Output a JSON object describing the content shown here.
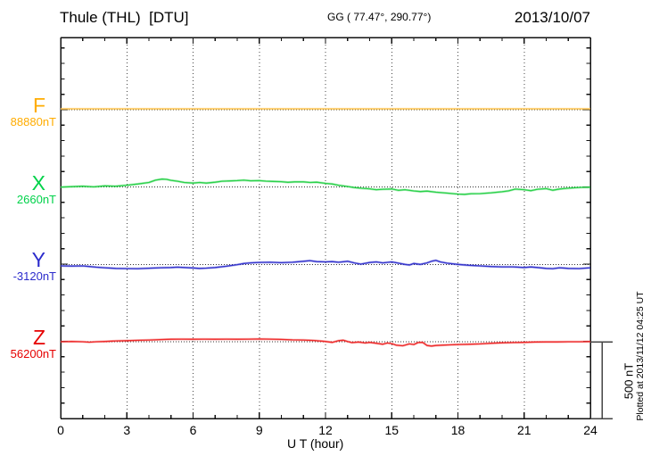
{
  "header": {
    "title": "Thule (THL)  [DTU]",
    "coordinates": "GG ( 77.47°, 290.77°)",
    "date": "2013/10/07"
  },
  "chart_data": {
    "type": "line",
    "title": "Thule (THL)  [DTU]",
    "xlabel": "U T (hour)",
    "x_range": [
      0,
      24
    ],
    "x_ticks": [
      "0",
      "3",
      "6",
      "9",
      "12",
      "15",
      "18",
      "21",
      "24"
    ],
    "grid_hours": [
      3,
      6,
      9,
      12,
      15,
      18,
      21
    ],
    "minor_tick_every_hours": 1,
    "y_tick_step_nT": 100,
    "scale_bar_label": "500 nT",
    "scale_bar_nT": 500,
    "plotted_at": "Plotted at 2013/11/12 04:25 UT",
    "grid": true,
    "legend_position": "left-margin",
    "series": [
      {
        "name": "F",
        "baseline_label": "88880nT",
        "baseline_nT": 88880,
        "label_color": "#FFAC00",
        "line_color": "#FFC34D",
        "points": [
          [
            0,
            6
          ],
          [
            24,
            6
          ]
        ]
      },
      {
        "name": "X",
        "baseline_label": "2660nT",
        "baseline_nT": 2660,
        "label_color": "#00D24A",
        "line_color": "#2BD14B",
        "points": [
          [
            0,
            0
          ],
          [
            0.5,
            3
          ],
          [
            1,
            6
          ],
          [
            1.5,
            2
          ],
          [
            2,
            8
          ],
          [
            2.5,
            6
          ],
          [
            3,
            12
          ],
          [
            3.5,
            20
          ],
          [
            4,
            30
          ],
          [
            4.3,
            45
          ],
          [
            4.6,
            52
          ],
          [
            4.8,
            50
          ],
          [
            5,
            44
          ],
          [
            5.3,
            38
          ],
          [
            5.6,
            30
          ],
          [
            6,
            26
          ],
          [
            6.3,
            30
          ],
          [
            6.6,
            26
          ],
          [
            7,
            32
          ],
          [
            7.3,
            38
          ],
          [
            7.6,
            40
          ],
          [
            8,
            42
          ],
          [
            8.3,
            45
          ],
          [
            8.6,
            41
          ],
          [
            9,
            42
          ],
          [
            9.3,
            39
          ],
          [
            9.6,
            37
          ],
          [
            10,
            35
          ],
          [
            10.3,
            31
          ],
          [
            10.6,
            34
          ],
          [
            11,
            34
          ],
          [
            11.3,
            30
          ],
          [
            11.6,
            32
          ],
          [
            12,
            24
          ],
          [
            12.3,
            20
          ],
          [
            12.6,
            12
          ],
          [
            13,
            4
          ],
          [
            13.3,
            -3
          ],
          [
            13.6,
            -7
          ],
          [
            14,
            -11
          ],
          [
            14.3,
            -17
          ],
          [
            14.6,
            -14
          ],
          [
            15,
            -12
          ],
          [
            15.3,
            -21
          ],
          [
            15.6,
            -17
          ],
          [
            16,
            -25
          ],
          [
            16.3,
            -29
          ],
          [
            16.6,
            -26
          ],
          [
            17,
            -33
          ],
          [
            17.5,
            -39
          ],
          [
            18,
            -45
          ],
          [
            18.3,
            -47
          ],
          [
            18.6,
            -43
          ],
          [
            19,
            -42
          ],
          [
            19.5,
            -37
          ],
          [
            20,
            -30
          ],
          [
            20.3,
            -24
          ],
          [
            20.6,
            -13
          ],
          [
            21,
            -17
          ],
          [
            21.3,
            -23
          ],
          [
            21.6,
            -14
          ],
          [
            22,
            -10
          ],
          [
            22.3,
            -20
          ],
          [
            22.6,
            -12
          ],
          [
            23,
            -7
          ],
          [
            23.3,
            -4
          ],
          [
            23.6,
            -2
          ],
          [
            24,
            -1
          ]
        ]
      },
      {
        "name": "Y",
        "baseline_label": "-3120nT",
        "baseline_nT": -3120,
        "label_color": "#2B2BCC",
        "line_color": "#3535CD",
        "points": [
          [
            0,
            -10
          ],
          [
            0.5,
            -11
          ],
          [
            1,
            -10
          ],
          [
            1.3,
            -14
          ],
          [
            1.6,
            -18
          ],
          [
            2,
            -22
          ],
          [
            2.5,
            -26
          ],
          [
            3,
            -27
          ],
          [
            3.5,
            -28
          ],
          [
            4,
            -25
          ],
          [
            4.5,
            -22
          ],
          [
            5,
            -20
          ],
          [
            5.3,
            -18
          ],
          [
            5.6,
            -20
          ],
          [
            6,
            -23
          ],
          [
            6.3,
            -26
          ],
          [
            6.6,
            -24
          ],
          [
            7,
            -20
          ],
          [
            7.5,
            -12
          ],
          [
            8,
            -2
          ],
          [
            8.3,
            6
          ],
          [
            8.6,
            10
          ],
          [
            9,
            13
          ],
          [
            9.5,
            14
          ],
          [
            10,
            11
          ],
          [
            10.5,
            14
          ],
          [
            11,
            20
          ],
          [
            11.3,
            24
          ],
          [
            11.6,
            18
          ],
          [
            12,
            16
          ],
          [
            12.3,
            18
          ],
          [
            12.6,
            14
          ],
          [
            13,
            20
          ],
          [
            13.3,
            10
          ],
          [
            13.6,
            2
          ],
          [
            14,
            12
          ],
          [
            14.3,
            16
          ],
          [
            14.6,
            10
          ],
          [
            15,
            16
          ],
          [
            15.3,
            8
          ],
          [
            15.6,
            0
          ],
          [
            15.8,
            -4
          ],
          [
            16,
            6
          ],
          [
            16.3,
            0
          ],
          [
            16.6,
            10
          ],
          [
            16.8,
            20
          ],
          [
            17,
            26
          ],
          [
            17.2,
            16
          ],
          [
            17.5,
            8
          ],
          [
            18,
            0
          ],
          [
            18.5,
            -6
          ],
          [
            19,
            -10
          ],
          [
            19.5,
            -14
          ],
          [
            20,
            -16
          ],
          [
            20.5,
            -16
          ],
          [
            21,
            -20
          ],
          [
            21.3,
            -17
          ],
          [
            21.6,
            -20
          ],
          [
            22,
            -26
          ],
          [
            22.3,
            -28
          ],
          [
            22.6,
            -22
          ],
          [
            23,
            -26
          ],
          [
            23.5,
            -27
          ],
          [
            24,
            -22
          ]
        ]
      },
      {
        "name": "Z",
        "baseline_label": "56200nT",
        "baseline_nT": 56200,
        "label_color": "#E60000",
        "line_color": "#EE2B2B",
        "points": [
          [
            0,
            0
          ],
          [
            0.5,
            2
          ],
          [
            1,
            0
          ],
          [
            1.3,
            -3
          ],
          [
            1.6,
            0
          ],
          [
            2,
            2
          ],
          [
            2.5,
            5
          ],
          [
            3,
            7
          ],
          [
            3.5,
            9
          ],
          [
            4,
            11
          ],
          [
            4.5,
            14
          ],
          [
            5,
            16
          ],
          [
            5.5,
            17
          ],
          [
            6,
            16
          ],
          [
            6.5,
            17
          ],
          [
            7,
            16
          ],
          [
            7.5,
            17
          ],
          [
            8,
            16
          ],
          [
            8.5,
            17
          ],
          [
            9,
            18
          ],
          [
            9.5,
            17
          ],
          [
            10,
            15
          ],
          [
            10.5,
            12
          ],
          [
            11,
            11
          ],
          [
            11.5,
            8
          ],
          [
            12,
            2
          ],
          [
            12.3,
            -4
          ],
          [
            12.6,
            7
          ],
          [
            12.8,
            10
          ],
          [
            13,
            2
          ],
          [
            13.2,
            -6
          ],
          [
            13.5,
            -2
          ],
          [
            13.8,
            -8
          ],
          [
            14,
            -4
          ],
          [
            14.3,
            -10
          ],
          [
            14.6,
            -16
          ],
          [
            14.8,
            -8
          ],
          [
            15,
            -12
          ],
          [
            15.2,
            -22
          ],
          [
            15.5,
            -26
          ],
          [
            15.8,
            -14
          ],
          [
            16,
            -18
          ],
          [
            16.2,
            -5
          ],
          [
            16.4,
            -4
          ],
          [
            16.6,
            -24
          ],
          [
            16.8,
            -28
          ],
          [
            17,
            -24
          ],
          [
            17.3,
            -22
          ],
          [
            17.6,
            -20
          ],
          [
            18,
            -18
          ],
          [
            18.5,
            -16
          ],
          [
            19,
            -14
          ],
          [
            19.5,
            -10
          ],
          [
            20,
            -7
          ],
          [
            20.5,
            -5
          ],
          [
            21,
            -4
          ],
          [
            21.5,
            -2
          ],
          [
            22,
            -1
          ],
          [
            22.5,
            -1
          ],
          [
            23,
            0
          ],
          [
            23.5,
            0
          ],
          [
            24,
            1
          ]
        ]
      }
    ]
  }
}
